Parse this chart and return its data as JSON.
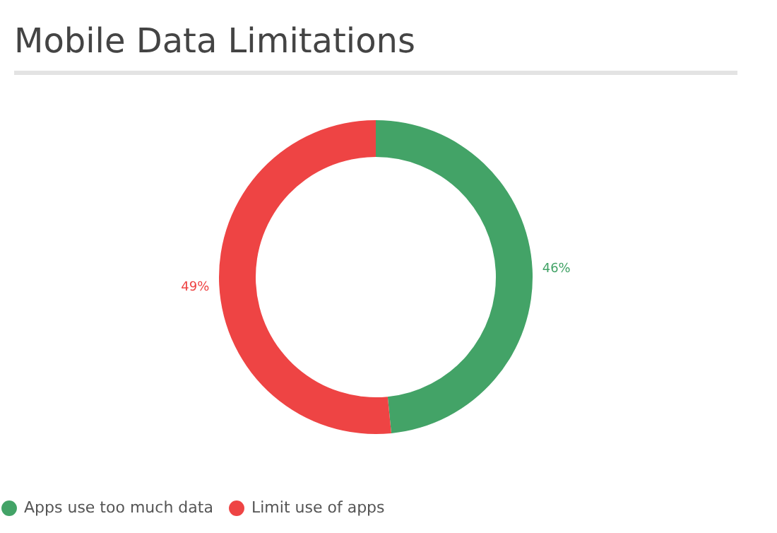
{
  "chart_data": {
    "type": "donut",
    "title": "Mobile Data Limitations",
    "categories": [
      "Apps use too much data",
      "Limit use of apps"
    ],
    "values": [
      46,
      49
    ],
    "colors": [
      "#43a367",
      "#ee4444"
    ],
    "value_labels": [
      "46%",
      "49%"
    ],
    "legend": "bottom"
  }
}
